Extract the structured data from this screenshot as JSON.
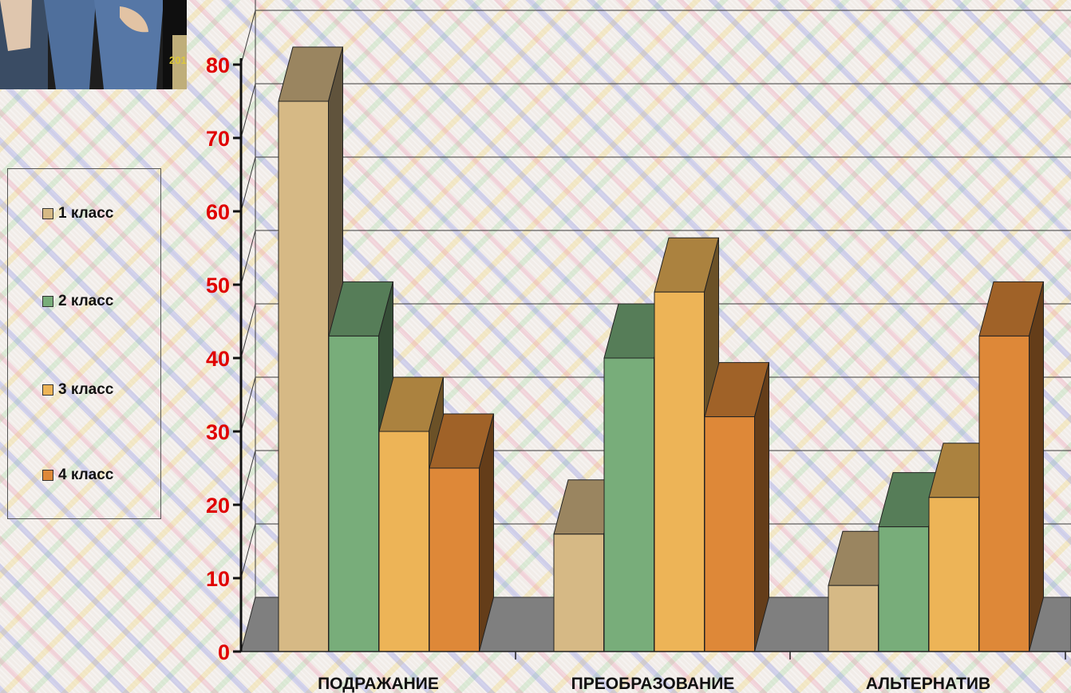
{
  "photo": {
    "caption": "201"
  },
  "chart_data": {
    "type": "bar",
    "categories": [
      "ПОДРАЖАНИЕ",
      "ПРЕОБРАЗОВАНИЕ",
      "АЛЬТЕРНАТИВ"
    ],
    "series": [
      {
        "name": "1 класс",
        "color": "#d6b985",
        "values": [
          75,
          16,
          9
        ]
      },
      {
        "name": "2 класс",
        "color": "#78ad7a",
        "values": [
          43,
          40,
          17
        ]
      },
      {
        "name": "3 класс",
        "color": "#edb457",
        "values": [
          30,
          49,
          21
        ]
      },
      {
        "name": "4 класс",
        "color": "#de8838",
        "values": [
          25,
          32,
          43
        ]
      }
    ],
    "yticks": [
      "0",
      "10",
      "20",
      "30",
      "40",
      "50",
      "60",
      "70",
      "80"
    ],
    "ylim": [
      0,
      80
    ],
    "grid": true,
    "legend": "left",
    "three_d": true
  }
}
